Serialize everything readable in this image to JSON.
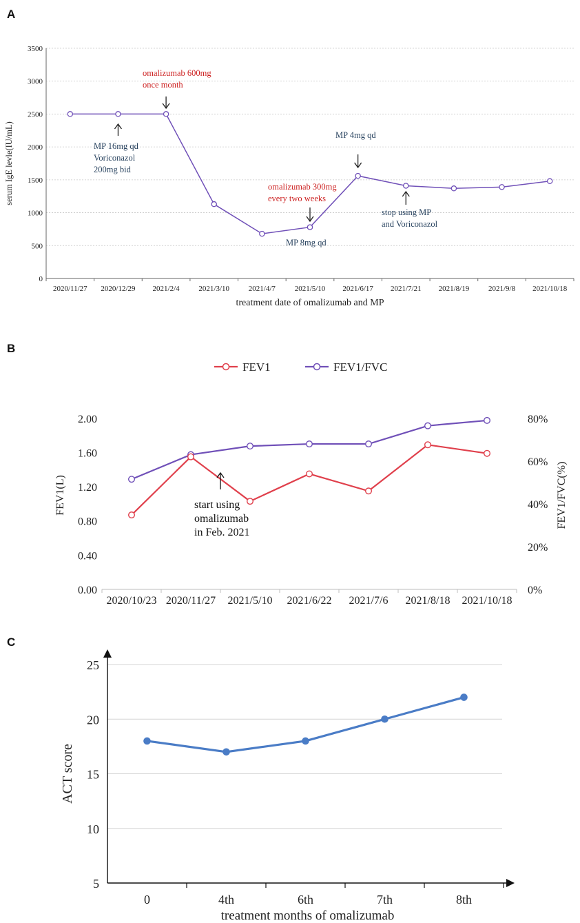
{
  "colors": {
    "purple": "#7050b8",
    "red": "#e0404c",
    "blue": "#4a7cc6",
    "annotation_red": "#cc1f1f",
    "annotation_blue": "#2a4460"
  },
  "chart_data": [
    {
      "panel": "A",
      "type": "line",
      "title": "",
      "xlabel": "treatment date of omalizumab and MP",
      "ylabel": "serum IgE levle(IU/mL)",
      "ylim": [
        0,
        3500
      ],
      "yticks": [
        0,
        500,
        1000,
        1500,
        2000,
        2500,
        3000,
        3500
      ],
      "grid": true,
      "categories": [
        "2020/11/27",
        "2020/12/29",
        "2021/2/4",
        "2021/3/10",
        "2021/4/7",
        "2021/5/10",
        "2021/6/17",
        "2021/7/21",
        "2021/8/19",
        "2021/9/8",
        "2021/10/18"
      ],
      "series": [
        {
          "name": "serum IgE",
          "values": [
            2500,
            2500,
            2500,
            1130,
            680,
            780,
            1560,
            1410,
            1370,
            1390,
            1480
          ]
        }
      ],
      "annotations": [
        {
          "category": "2021/2/4",
          "direction": "down",
          "color": "red",
          "lines": [
            "omalizumab 600mg",
            "once month"
          ]
        },
        {
          "category": "2020/12/29",
          "direction": "up",
          "color": "blue",
          "lines": [
            "MP 16mg qd",
            "Voriconazol",
            "200mg bid"
          ]
        },
        {
          "category": "2021/5/10",
          "direction": "down",
          "color": "red",
          "lines": [
            "omalizumab 300mg",
            "every two weeks"
          ]
        },
        {
          "category": "2021/5/10",
          "direction": "none",
          "color": "blue",
          "lines": [
            "MP 8mg qd"
          ]
        },
        {
          "category": "2021/6/17",
          "direction": "down",
          "color": "blue",
          "lines": [
            "MP 4mg qd"
          ]
        },
        {
          "category": "2021/7/21",
          "direction": "up",
          "color": "blue",
          "lines": [
            "stop using MP",
            "and  Voriconazol"
          ]
        }
      ]
    },
    {
      "panel": "B",
      "type": "line",
      "title": "",
      "xlabel": "",
      "ylabel": "FEV1(L)",
      "y2label": "FEV1/FVC(%)",
      "ylim": [
        0,
        2.2
      ],
      "yticks": [
        "0.00",
        "0.40",
        "0.80",
        "1.20",
        "1.60",
        "2.00"
      ],
      "y2lim": [
        0,
        88
      ],
      "y2ticks": [
        "0%",
        "20%",
        "40%",
        "60%",
        "80%"
      ],
      "grid": false,
      "legend": "top-center",
      "categories": [
        "2020/10/23",
        "2020/11/27",
        "2021/5/10",
        "2021/6/22",
        "2021/7/6",
        "2021/8/18",
        "2021/10/18"
      ],
      "series": [
        {
          "name": "FEV1",
          "axis": "left",
          "values": [
            0.87,
            1.55,
            1.03,
            1.35,
            1.15,
            1.69,
            1.59
          ]
        },
        {
          "name": "FEV1/FVC",
          "axis": "right",
          "values": [
            51.5,
            63.0,
            67.0,
            68.0,
            68.0,
            76.5,
            79.0
          ]
        }
      ],
      "annotations": [
        {
          "between": [
            "2020/11/27",
            "2021/5/10"
          ],
          "direction": "up",
          "lines": [
            "start  using",
            "omalizumab",
            "in Feb. 2021"
          ]
        }
      ]
    },
    {
      "panel": "C",
      "type": "line",
      "title": "",
      "xlabel": "treatment months of omalizumab",
      "ylabel": "ACT score",
      "ylim": [
        5,
        25
      ],
      "yticks": [
        5,
        10,
        15,
        20,
        25
      ],
      "grid": true,
      "categories": [
        "0",
        "4th",
        "6th",
        "7th",
        "8th"
      ],
      "series": [
        {
          "name": "ACT score",
          "values": [
            18,
            17,
            18,
            20,
            22
          ]
        }
      ]
    }
  ]
}
